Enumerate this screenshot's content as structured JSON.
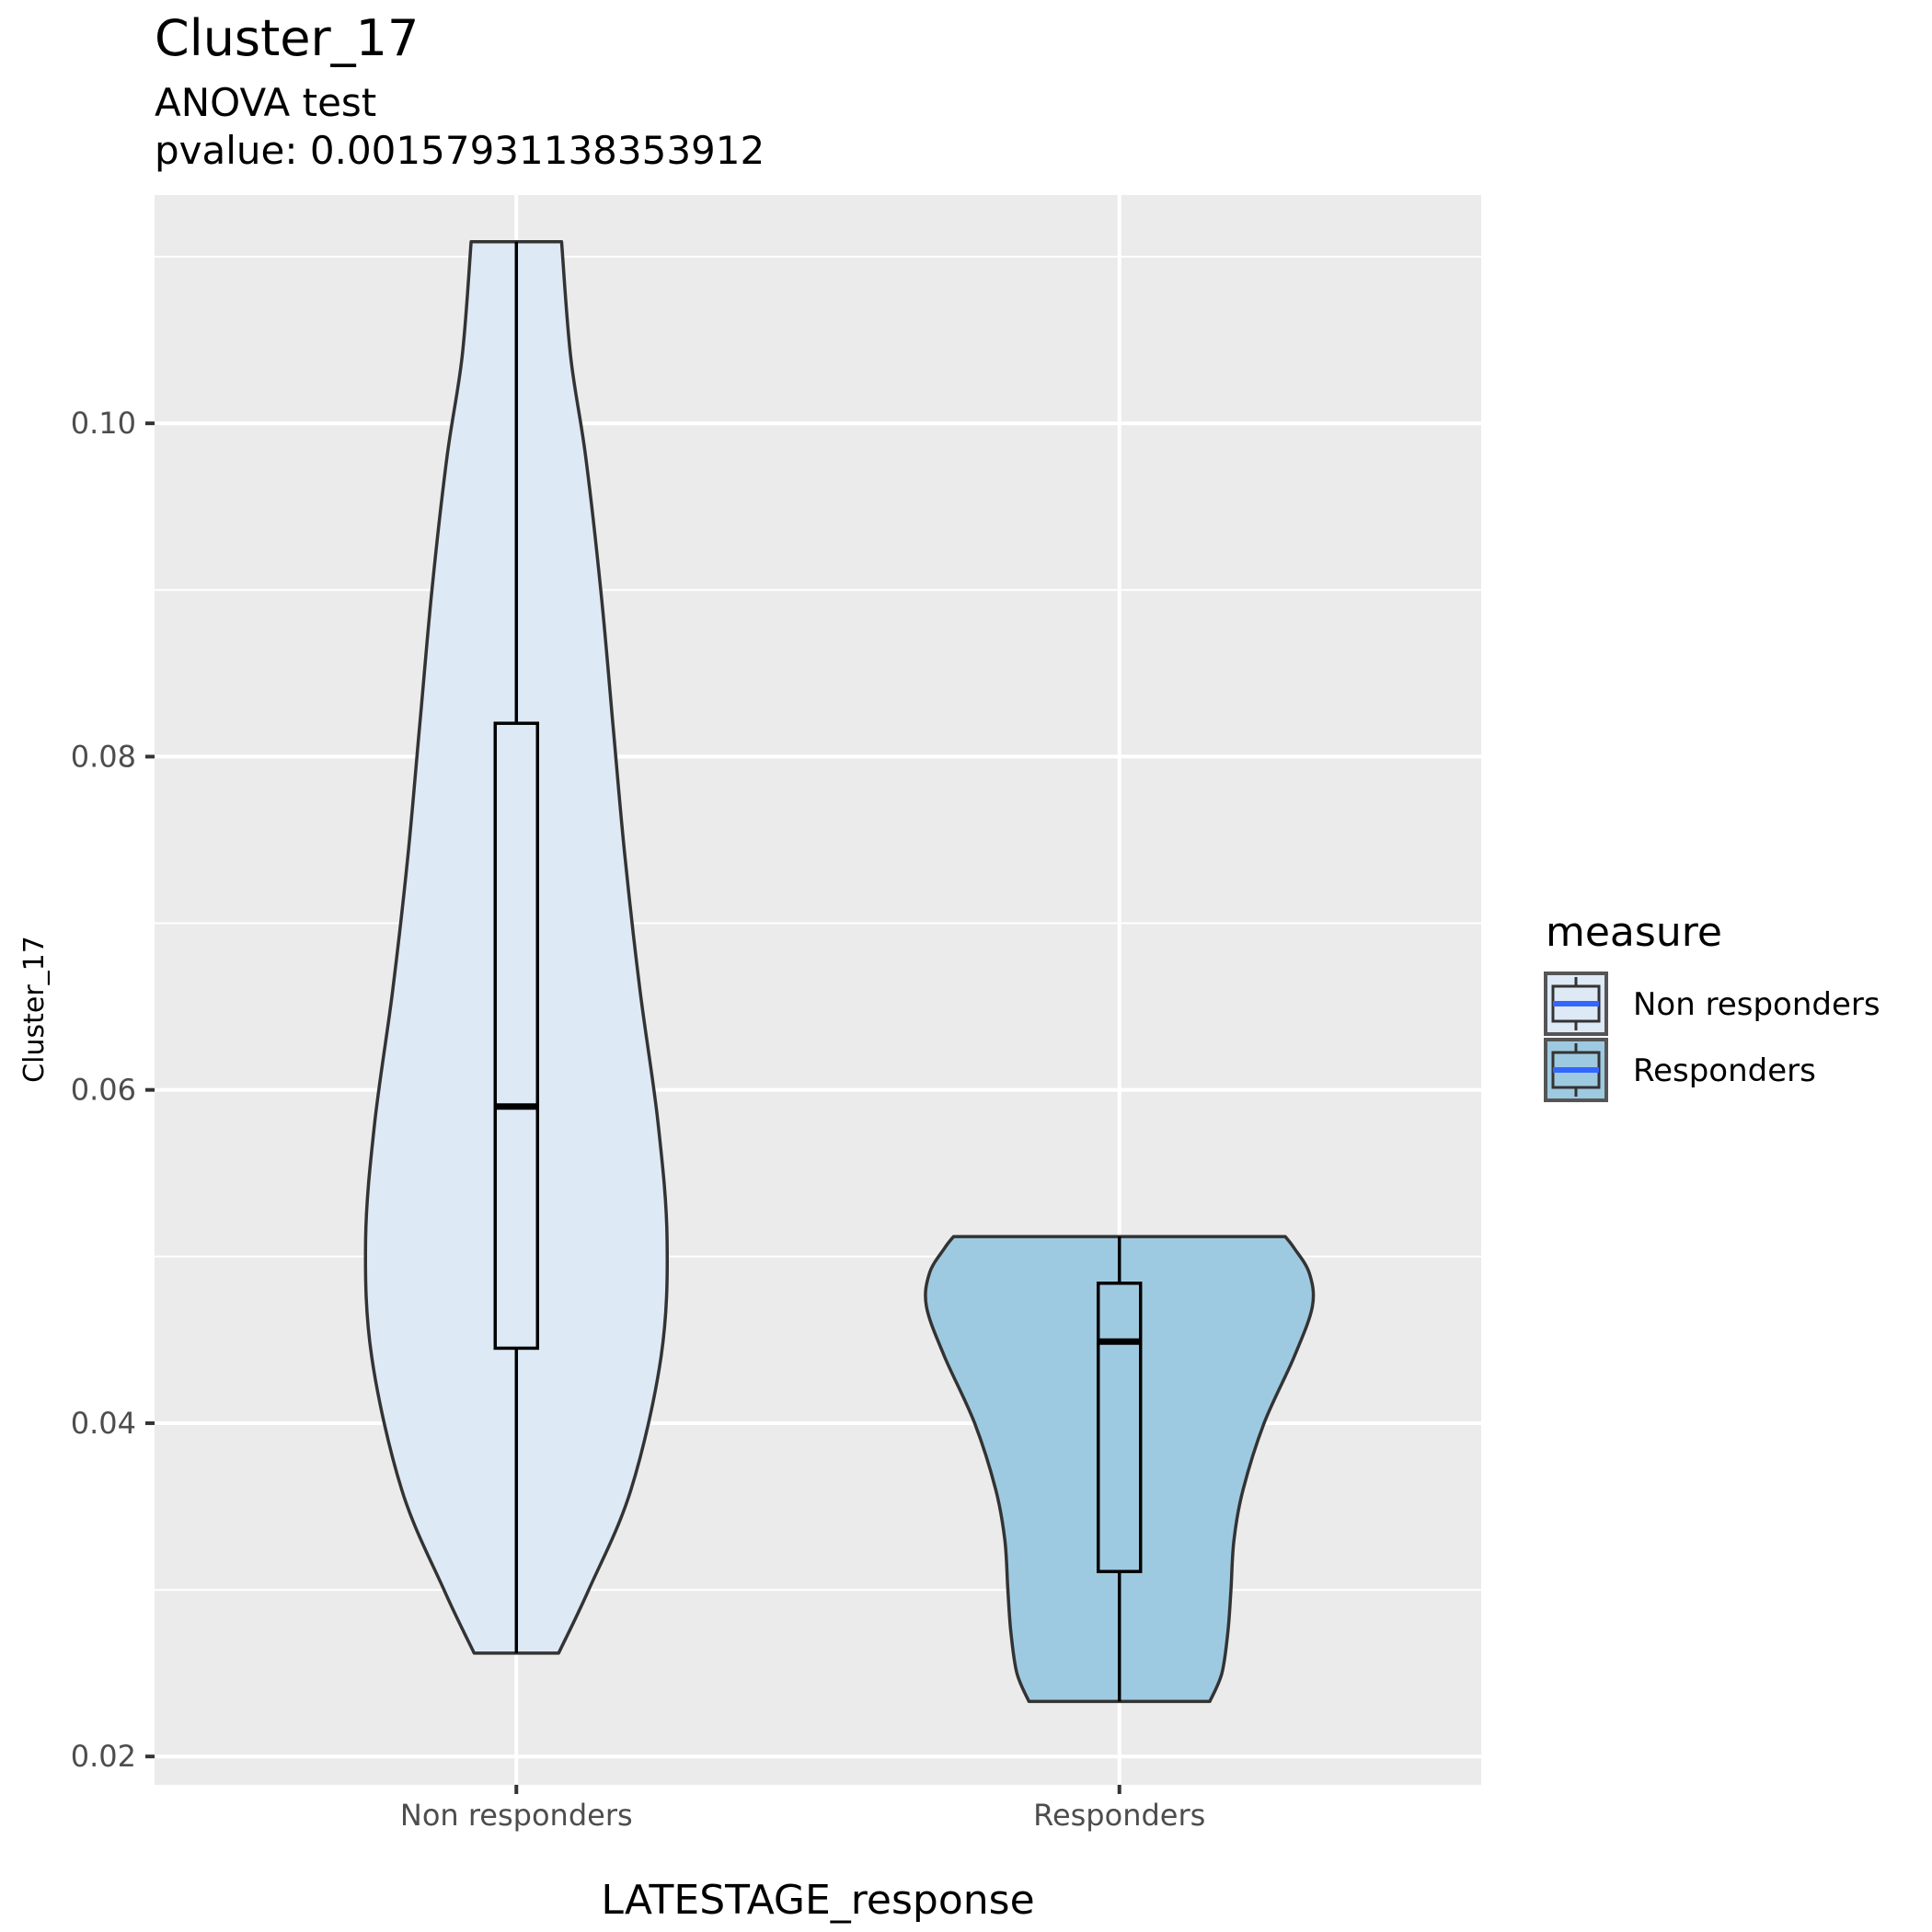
{
  "chart_data": {
    "type": "violin",
    "title": "Cluster_17",
    "subtitle": [
      "ANOVA test",
      "pvalue: 0.00157931138353912"
    ],
    "xlabel": "LATESTAGE_response",
    "ylabel": "Cluster_17",
    "categories": [
      "Non responders",
      "Responders"
    ],
    "ylim": [
      0.0183,
      0.1137
    ],
    "y_ticks": [
      0.02,
      0.04,
      0.06,
      0.08,
      0.1
    ],
    "y_tick_labels": [
      "0.02",
      "0.04",
      "0.06",
      "0.08",
      "0.10"
    ],
    "y_minor_ticks": [
      0.03,
      0.05,
      0.07,
      0.09,
      0.11
    ],
    "grid": true,
    "legend": {
      "title": "measure",
      "position": "right",
      "entries": [
        "Non responders",
        "Responders"
      ]
    },
    "colors": {
      "Non responders": "#dde9f5",
      "Responders": "#9ecae1",
      "panel": "#ebebeb",
      "grid": "#ffffff",
      "outline": "#333333",
      "legend_median": "#3366ff"
    },
    "series": [
      {
        "category": "Non responders",
        "box": {
          "min": 0.0262,
          "q1": 0.0445,
          "median": 0.059,
          "q3": 0.082,
          "max": 0.1109
        },
        "violin": {
          "min": 0.0262,
          "max": 0.1109,
          "profile": [
            [
              0.0262,
              0.14
            ],
            [
              0.03,
              0.24
            ],
            [
              0.036,
              0.38
            ],
            [
              0.044,
              0.48
            ],
            [
              0.051,
              0.5
            ],
            [
              0.058,
              0.47
            ],
            [
              0.066,
              0.41
            ],
            [
              0.074,
              0.36
            ],
            [
              0.082,
              0.32
            ],
            [
              0.09,
              0.28
            ],
            [
              0.098,
              0.23
            ],
            [
              0.104,
              0.18
            ],
            [
              0.1109,
              0.15
            ]
          ]
        }
      },
      {
        "category": "Responders",
        "box": {
          "min": 0.0233,
          "q1": 0.0311,
          "median": 0.0449,
          "q3": 0.0484,
          "max": 0.0512
        },
        "violin": {
          "min": 0.0233,
          "max": 0.0512,
          "profile": [
            [
              0.0233,
              0.3
            ],
            [
              0.025,
              0.34
            ],
            [
              0.0275,
              0.36
            ],
            [
              0.03,
              0.37
            ],
            [
              0.033,
              0.38
            ],
            [
              0.036,
              0.41
            ],
            [
              0.04,
              0.48
            ],
            [
              0.044,
              0.58
            ],
            [
              0.047,
              0.64
            ],
            [
              0.049,
              0.63
            ],
            [
              0.0505,
              0.58
            ],
            [
              0.0512,
              0.55
            ]
          ]
        }
      }
    ]
  }
}
